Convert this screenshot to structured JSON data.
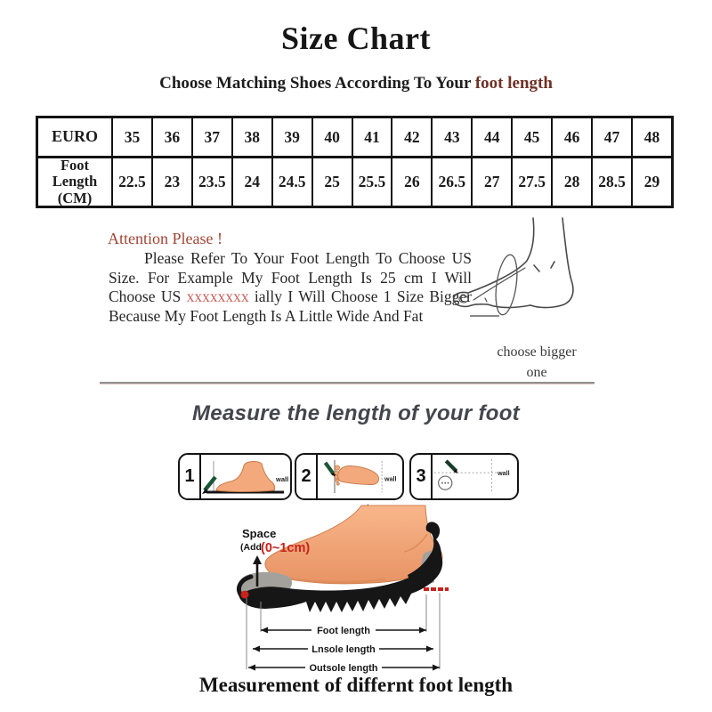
{
  "header": {
    "title": "Size Chart",
    "subtitle_prefix": "Choose Matching Shoes According To Your ",
    "subtitle_accent": "foot length"
  },
  "size_table": {
    "row1_label": "EURO",
    "row2_label": "Foot Length (CM)",
    "euro_sizes": [
      "35",
      "36",
      "37",
      "38",
      "39",
      "40",
      "41",
      "42",
      "43",
      "44",
      "45",
      "46",
      "47",
      "48"
    ],
    "foot_length_cm": [
      "22.5",
      "23",
      "23.5",
      "24",
      "24.5",
      "25",
      "25.5",
      "26",
      "26.5",
      "27",
      "27.5",
      "28",
      "28.5",
      "29"
    ]
  },
  "attention": {
    "heading": "Attention Please !",
    "body_before": "Please Refer To Your Foot Length To Choose US Size. For Example My Foot Length Is 25 cm I Will Choose US ",
    "body_censored": "xxxxxxxx",
    "body_after": " ially I Will Choose 1 Size Bigger Because My Foot Length Is A Little Wide And Fat",
    "side_note": "choose bigger one"
  },
  "measure_section": {
    "heading": "Measure the length of your foot",
    "steps": [
      {
        "number": "1",
        "wall_label": "wall"
      },
      {
        "number": "2",
        "wall_label": "wall"
      },
      {
        "number": "3",
        "wall_label": "wall"
      }
    ]
  },
  "measurement_diagram": {
    "space_label": "Space",
    "add_prefix": "(Add",
    "add_value": "(0~1cm)",
    "labels": {
      "foot": "Foot length",
      "insole": "Lnsole length",
      "outsole": "Outsole length"
    }
  },
  "footer": {
    "caption": "Measurement of differnt foot length"
  },
  "colors": {
    "subtitle_accent": "#6e3126",
    "attention_red": "#a04535",
    "censored_red": "#c4615c",
    "space_value_red": "#c8231d",
    "measure_heading_gray": "#45454e",
    "skin": "#f3a97c",
    "pen_green": "#1d5635",
    "sole_black": "#161616",
    "insole_gray": "#a3a19c"
  }
}
